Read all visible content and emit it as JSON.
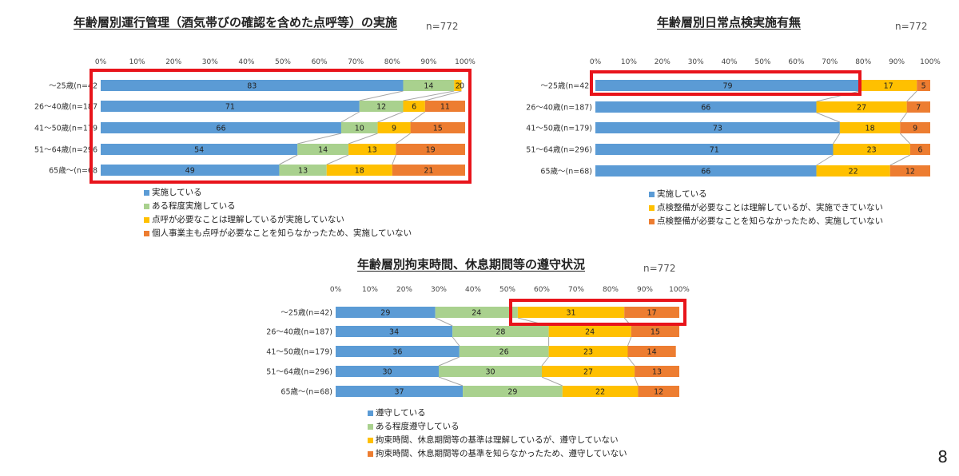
{
  "page_number": "8",
  "colors": {
    "blue": "#5b9bd5",
    "green": "#a9d18e",
    "yellow": "#ffc000",
    "orange": "#ed7d31",
    "highlight": "#e8141b"
  },
  "chart_data": [
    {
      "type": "bar",
      "stacked": true,
      "orientation": "horizontal",
      "title": "年齢層別運行管理（酒気帯びの確認を含めた点呼等）の実施",
      "n_label": "n=772",
      "x_ticks": [
        "0%",
        "10%",
        "20%",
        "30%",
        "40%",
        "50%",
        "60%",
        "70%",
        "80%",
        "90%",
        "100%"
      ],
      "xlim": [
        0,
        100
      ],
      "categories": [
        "〜25歳(n=42",
        "26〜40歳(n=187",
        "41〜50歳(n=179",
        "51〜64歳(n=296",
        "65歳〜(n=68"
      ],
      "series": [
        {
          "name": "実施している",
          "color": "#5b9bd5",
          "values": [
            83,
            71,
            66,
            54,
            49
          ]
        },
        {
          "name": "ある程度実施している",
          "color": "#a9d18e",
          "values": [
            14,
            12,
            10,
            14,
            13
          ]
        },
        {
          "name": "点呼が必要なことは理解しているが実施していない",
          "color": "#ffc000",
          "values": [
            2,
            6,
            9,
            13,
            18
          ]
        },
        {
          "name": "個人事業主も点呼が必要なことを知らなかったため、実施していない",
          "color": "#ed7d31",
          "values": [
            0,
            11,
            15,
            19,
            21
          ]
        }
      ],
      "legend_position": "bottom-left",
      "highlight": "all rows"
    },
    {
      "type": "bar",
      "stacked": true,
      "orientation": "horizontal",
      "title": "年齢層別日常点検実施有無",
      "n_label": "n=772",
      "x_ticks": [
        "0%",
        "10%",
        "20%",
        "30%",
        "40%",
        "50%",
        "60%",
        "70%",
        "80%",
        "90%",
        "100%"
      ],
      "xlim": [
        0,
        100
      ],
      "categories": [
        "〜25歳(n=42)",
        "26〜40歳(n=187)",
        "41〜50歳(n=179)",
        "51〜64歳(n=296)",
        "65歳〜(n=68)"
      ],
      "series": [
        {
          "name": "実施している",
          "color": "#5b9bd5",
          "values": [
            79,
            66,
            73,
            71,
            66
          ]
        },
        {
          "name": "点検整備が必要なことは理解しているが、実施できていない",
          "color": "#ffc000",
          "values": [
            17,
            27,
            18,
            23,
            22
          ]
        },
        {
          "name": "点検整備が必要なことを知らなかったため、実施していない",
          "color": "#ed7d31",
          "values": [
            5,
            7,
            9,
            6,
            12
          ]
        }
      ],
      "legend_position": "bottom-left",
      "highlight": "〜25歳 実施している"
    },
    {
      "type": "bar",
      "stacked": true,
      "orientation": "horizontal",
      "title": "年齢層別拘束時間、休息期間等の遵守状況",
      "n_label": "n=772",
      "x_ticks": [
        "0%",
        "10%",
        "20%",
        "30%",
        "40%",
        "50%",
        "60%",
        "70%",
        "80%",
        "90%",
        "100%"
      ],
      "xlim": [
        0,
        100
      ],
      "categories": [
        "〜25歳(n=42)",
        "26〜40歳(n=187)",
        "41〜50歳(n=179)",
        "51〜64歳(n=296)",
        "65歳〜(n=68)"
      ],
      "series": [
        {
          "name": "遵守している",
          "color": "#5b9bd5",
          "values": [
            29,
            34,
            36,
            30,
            37
          ]
        },
        {
          "name": "ある程度遵守している",
          "color": "#a9d18e",
          "values": [
            24,
            28,
            26,
            30,
            29
          ]
        },
        {
          "name": "拘束時間、休息期間等の基準は理解しているが、遵守していない",
          "color": "#ffc000",
          "values": [
            31,
            24,
            23,
            27,
            22
          ]
        },
        {
          "name": "拘束時間、休息期間等の基準を知らなかったため、遵守していない",
          "color": "#ed7d31",
          "values": [
            17,
            15,
            14,
            13,
            12
          ]
        }
      ],
      "legend_position": "bottom-left",
      "highlight": "〜25歳 未遵守"
    }
  ]
}
